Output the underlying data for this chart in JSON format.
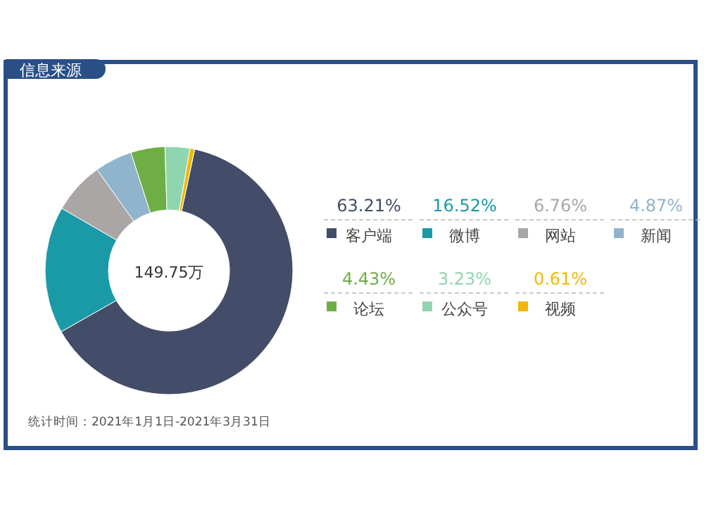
{
  "chart_data": {
    "type": "donut",
    "title": "信息来源",
    "categories": [
      "客户端",
      "微博",
      "网站",
      "新闻",
      "论坛",
      "公众号",
      "视频"
    ],
    "values": [
      63.21,
      16.52,
      6.76,
      4.87,
      4.43,
      3.23,
      0.61
    ],
    "value_labels": [
      "63.21%",
      "16.52%",
      "6.76%",
      "4.87%",
      "4.43%",
      "3.23%",
      "0.61%"
    ],
    "colors": [
      "#434c68",
      "#1a9aa6",
      "#aaa6a6",
      "#90b4cb",
      "#6fae45",
      "#8fd6b0",
      "#f2b705"
    ],
    "legend": "right",
    "annotations": [
      "149.75万",
      "统计时间：2021年1月1日-2021年3月31日"
    ]
  }
}
